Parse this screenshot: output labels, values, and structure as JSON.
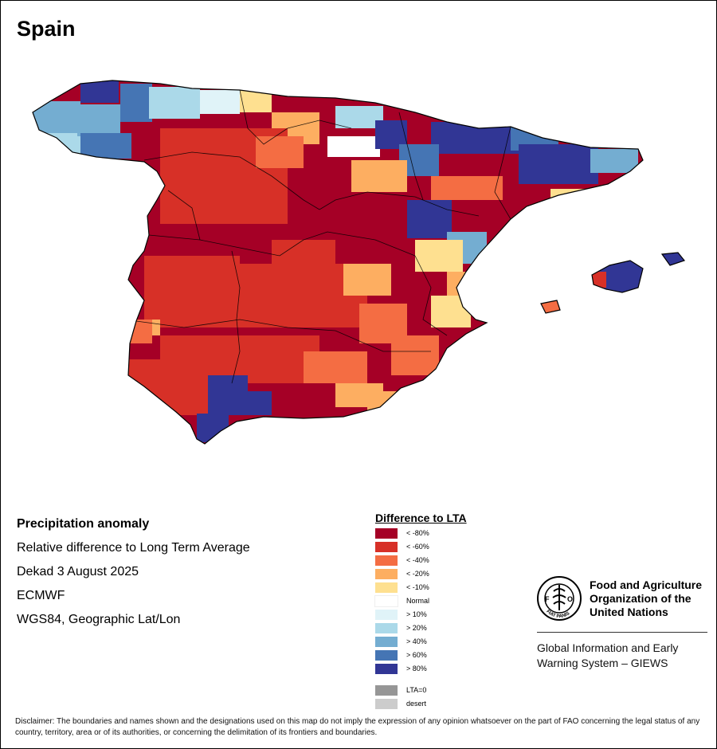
{
  "map": {
    "country": "Spain",
    "cells": [
      {
        "name": "galicia-nw",
        "c": 8
      },
      {
        "name": "galicia-n",
        "c": 10
      },
      {
        "name": "galicia-w",
        "c": 7
      },
      {
        "name": "galicia-c",
        "c": 8
      },
      {
        "name": "galicia-s",
        "c": 9
      },
      {
        "name": "asturias-w",
        "c": 9
      },
      {
        "name": "asturias",
        "c": 7
      },
      {
        "name": "cantabria",
        "c": 6
      },
      {
        "name": "basque-coast",
        "c": 4
      },
      {
        "name": "basque-inland",
        "c": 3
      },
      {
        "name": "navarra-n",
        "c": 7
      },
      {
        "name": "navarra-s",
        "c": 5
      },
      {
        "name": "pyrenees-w",
        "c": 10
      },
      {
        "name": "pyrenees-c",
        "c": 10
      },
      {
        "name": "catalonia-n",
        "c": 9
      },
      {
        "name": "catalonia-c",
        "c": 10
      },
      {
        "name": "catalonia-e",
        "c": 8
      },
      {
        "name": "catalonia-coast",
        "c": 4
      },
      {
        "name": "aragon-n",
        "c": 9
      },
      {
        "name": "aragon-c",
        "c": 3
      },
      {
        "name": "ebro-valley",
        "c": 2
      },
      {
        "name": "teruel",
        "c": 10
      },
      {
        "name": "teruel-s",
        "c": 8
      },
      {
        "name": "castellon",
        "c": 4
      },
      {
        "name": "valencia",
        "c": 3
      },
      {
        "name": "alicante",
        "c": 4
      },
      {
        "name": "murcia",
        "c": 2
      },
      {
        "name": "castilla-leon",
        "c": 1
      },
      {
        "name": "burgos",
        "c": 2
      },
      {
        "name": "madrid",
        "c": 1
      },
      {
        "name": "castilla-la-mancha",
        "c": 1
      },
      {
        "name": "cuenca",
        "c": 3
      },
      {
        "name": "albacete",
        "c": 2
      },
      {
        "name": "extremadura",
        "c": 1
      },
      {
        "name": "extremadura-w",
        "c": 3
      },
      {
        "name": "andalusia-n",
        "c": 1
      },
      {
        "name": "andalusia-e",
        "c": 2
      },
      {
        "name": "granada",
        "c": 3
      },
      {
        "name": "sevilla",
        "c": 1
      },
      {
        "name": "huelva",
        "c": 2
      },
      {
        "name": "cadiz-inland",
        "c": 10
      },
      {
        "name": "malaga",
        "c": 10
      },
      {
        "name": "cadiz",
        "c": 10
      },
      {
        "name": "almeria",
        "c": 3
      },
      {
        "name": "mallorca",
        "c": 10
      },
      {
        "name": "mallorca-w",
        "c": 2
      },
      {
        "name": "menorca",
        "c": 10
      },
      {
        "name": "ibiza",
        "c": 3
      }
    ]
  },
  "info": {
    "heading": "Precipitation anomaly",
    "subtitle": "Relative difference to Long Term Average",
    "period": "Dekad 3 August 2025",
    "source": "ECMWF",
    "projection": "WGS84, Geographic Lat/Lon"
  },
  "legend": {
    "title": "Difference to LTA",
    "classes": [
      {
        "label": "< -80%",
        "color": "#a50026"
      },
      {
        "label": "< -60%",
        "color": "#d73027"
      },
      {
        "label": "< -40%",
        "color": "#f46d43"
      },
      {
        "label": "< -20%",
        "color": "#fdae61"
      },
      {
        "label": "< -10%",
        "color": "#fee090"
      },
      {
        "label": "Normal",
        "color": "#ffffff"
      },
      {
        "label": "> 10%",
        "color": "#e0f3f8"
      },
      {
        "label": "> 20%",
        "color": "#abd9e9"
      },
      {
        "label": "> 40%",
        "color": "#74add1"
      },
      {
        "label": "> 60%",
        "color": "#4575b4"
      },
      {
        "label": "> 80%",
        "color": "#313695"
      },
      {
        "label": "LTA=0",
        "color": "#969696"
      },
      {
        "label": "desert",
        "color": "#cccccc"
      }
    ]
  },
  "fao": {
    "name_line1": "Food and Agriculture",
    "name_line2": "Organization of the",
    "name_line3": "United Nations",
    "logo_text": "FIAT PANIS",
    "giews_line1": "Global Information and Early",
    "giews_line2": "Warning System – GIEWS"
  },
  "disclaimer": "Disclaimer: The boundaries and names shown and the designations used on this map do not imply the expression of any opinion whatsoever on the part of FAO concerning the legal status of any country, territory, area or of its authorities, or concerning the delimitation of its frontiers and boundaries."
}
